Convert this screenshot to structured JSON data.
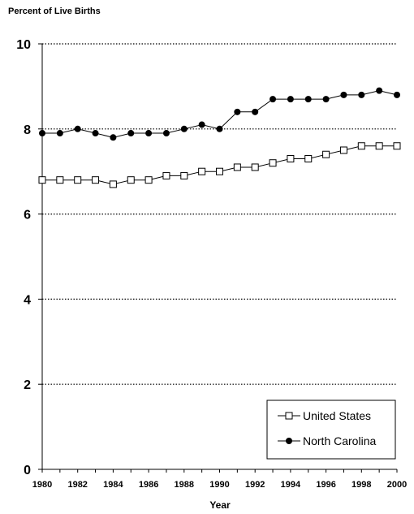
{
  "chart_data": {
    "type": "line",
    "ylabel": "Percent of Live Births",
    "xlabel": "Year",
    "x": [
      1980,
      1981,
      1982,
      1983,
      1984,
      1985,
      1986,
      1987,
      1988,
      1989,
      1990,
      1991,
      1992,
      1993,
      1994,
      1995,
      1996,
      1997,
      1998,
      1999,
      2000
    ],
    "xticks": [
      "1980",
      "1982",
      "1984",
      "1986",
      "1988",
      "1990",
      "1992",
      "1994",
      "1996",
      "1998",
      "2000"
    ],
    "yticks": [
      "0",
      "2",
      "4",
      "6",
      "8",
      "10"
    ],
    "ylim": [
      0,
      10
    ],
    "xlim": [
      1980,
      2000
    ],
    "grid": "horizontal dotted",
    "legend_position": "bottom-right",
    "series": [
      {
        "name": "United States",
        "marker": "open-square",
        "color": "#000000",
        "values": [
          6.8,
          6.8,
          6.8,
          6.8,
          6.7,
          6.8,
          6.8,
          6.9,
          6.9,
          7.0,
          7.0,
          7.1,
          7.1,
          7.2,
          7.3,
          7.3,
          7.4,
          7.5,
          7.6,
          7.6,
          7.6
        ]
      },
      {
        "name": "North Carolina",
        "marker": "filled-circle",
        "color": "#000000",
        "values": [
          7.9,
          7.9,
          8.0,
          7.9,
          7.8,
          7.9,
          7.9,
          7.9,
          8.0,
          8.1,
          8.0,
          8.4,
          8.4,
          8.7,
          8.7,
          8.7,
          8.7,
          8.8,
          8.8,
          8.9,
          8.8
        ]
      }
    ]
  }
}
